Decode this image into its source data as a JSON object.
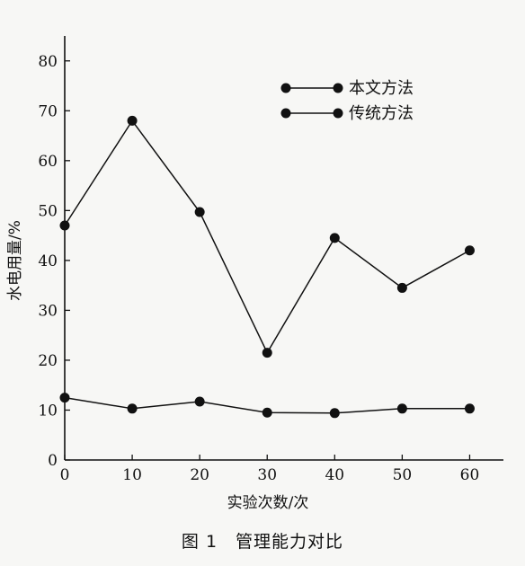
{
  "caption": "图 1　管理能力对比",
  "chart_data": {
    "type": "line",
    "title": "",
    "xlabel": "实验次数/次",
    "ylabel": "水电用量/%",
    "x": [
      0,
      10,
      20,
      30,
      40,
      50,
      60
    ],
    "xlim": [
      0,
      65
    ],
    "ylim": [
      0,
      85
    ],
    "xticks": [
      "0",
      "10",
      "20",
      "30",
      "40",
      "50",
      "60"
    ],
    "yticks": [
      "0",
      "10",
      "20",
      "30",
      "40",
      "50",
      "60",
      "70",
      "80"
    ],
    "grid": false,
    "legend_position": "top-right",
    "series": [
      {
        "name": "本文方法",
        "values": [
          12.5,
          10.3,
          11.7,
          9.5,
          9.4,
          10.3,
          10.3
        ],
        "color": "#111111",
        "marker": "circle"
      },
      {
        "name": "传统方法",
        "values": [
          47,
          68,
          49.7,
          21.5,
          44.5,
          34.5,
          42
        ],
        "color": "#111111",
        "marker": "circle"
      }
    ]
  }
}
